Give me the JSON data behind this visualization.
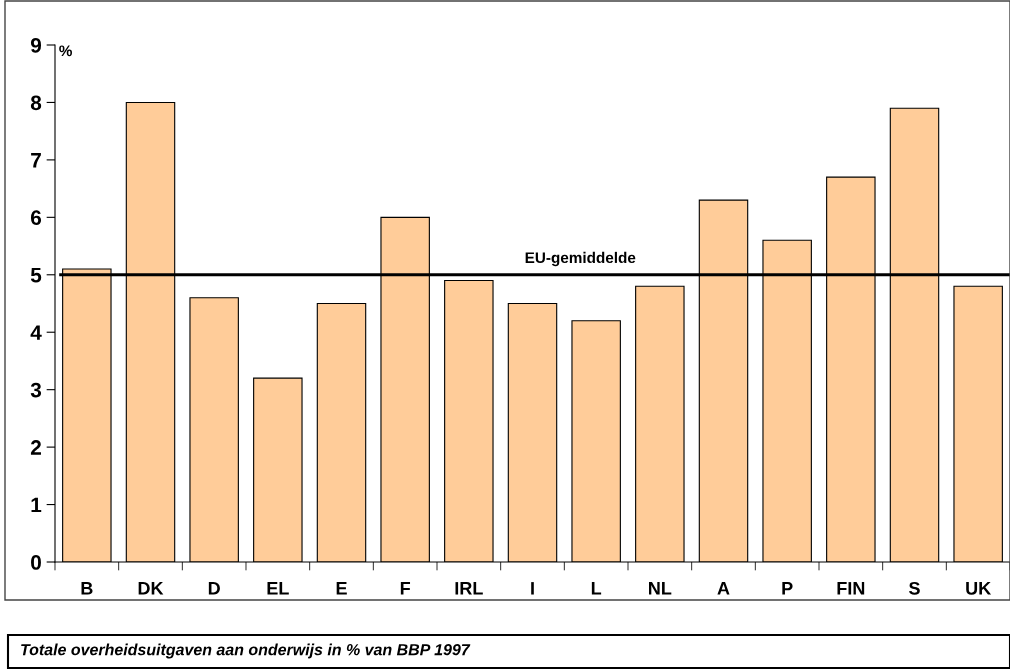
{
  "chart_data": {
    "type": "bar",
    "categories": [
      "B",
      "DK",
      "D",
      "EL",
      "E",
      "F",
      "IRL",
      "I",
      "L",
      "NL",
      "A",
      "P",
      "FIN",
      "S",
      "UK"
    ],
    "values": [
      5.1,
      8.0,
      4.6,
      3.2,
      4.5,
      6.0,
      4.9,
      4.5,
      4.2,
      4.8,
      6.3,
      5.6,
      6.7,
      7.9,
      4.8
    ],
    "color": "#ffcc99",
    "ylabel": "%",
    "ylim": [
      0,
      9
    ],
    "yticks": [
      0,
      1,
      2,
      3,
      4,
      5,
      6,
      7,
      8,
      9
    ],
    "ref_lines": [
      {
        "axis": "y",
        "value": 5,
        "label": "EU-gemiddelde",
        "color": "#000000"
      }
    ],
    "annotations": [
      "Totale overheidsuitgaven aan onderwijs in % van BBP 1997"
    ],
    "grid": false,
    "legend": false
  }
}
